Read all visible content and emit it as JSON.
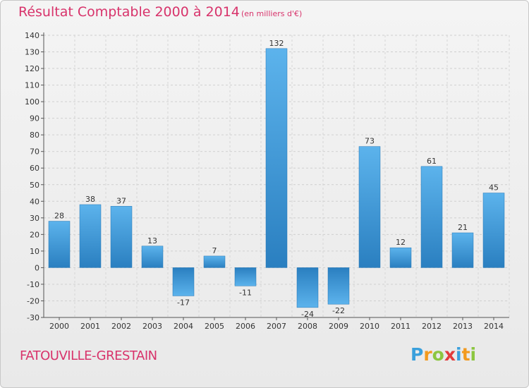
{
  "title": "Résultat Comptable 2000 à 2014",
  "unit": "(en milliers d'€)",
  "commune": "FATOUVILLE-GRESTAIN",
  "logo": {
    "letters": [
      "P",
      "r",
      "o",
      "x",
      "i",
      "t",
      "i"
    ],
    "colors": [
      "#3aa0dc",
      "#f29a1e",
      "#8cc63f",
      "#e23b3b",
      "#3aa0dc",
      "#f29a1e",
      "#8cc63f"
    ]
  },
  "chart_data": {
    "type": "bar",
    "title": "Résultat Comptable 2000 à 2014",
    "categories": [
      "2000",
      "2001",
      "2002",
      "2003",
      "2004",
      "2005",
      "2006",
      "2007",
      "2008",
      "2009",
      "2010",
      "2011",
      "2012",
      "2013",
      "2014"
    ],
    "values": [
      28,
      38,
      37,
      13,
      -17,
      7,
      -11,
      132,
      -24,
      -22,
      73,
      12,
      61,
      21,
      45
    ],
    "data_labels": [
      "28",
      "38",
      "37",
      "13",
      "-17",
      "7",
      "-11",
      "132",
      "-24",
      "-22",
      "73",
      "12",
      "61",
      "21",
      "45"
    ],
    "ylim": [
      -30,
      140
    ],
    "yticks": [
      -30,
      -20,
      -10,
      0,
      10,
      20,
      30,
      40,
      50,
      60,
      70,
      80,
      90,
      100,
      110,
      120,
      130,
      140
    ],
    "grid": true,
    "bar_color": "#3d9ad8"
  }
}
